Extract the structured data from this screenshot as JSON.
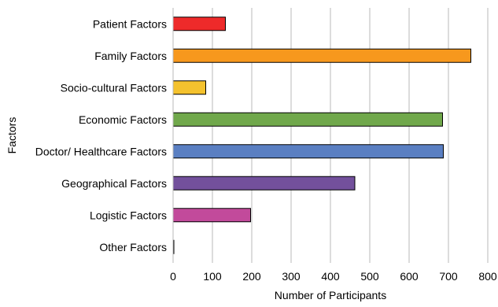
{
  "chart_data": {
    "type": "bar",
    "orientation": "horizontal",
    "title": "",
    "xlabel": "Number of Participants",
    "ylabel": "Factors",
    "xlim": [
      0,
      800
    ],
    "x_ticks": [
      "0",
      "100",
      "200",
      "300",
      "400",
      "500",
      "600",
      "700",
      "800"
    ],
    "grid": "vertical",
    "legend": "none",
    "categories": [
      "Patient Factors",
      "Family Factors",
      "Socio-cultural Factors",
      "Economic Factors",
      "Doctor/ Healthcare Factors",
      "Geographical Factors",
      "Logistic Factors",
      "Other Factors"
    ],
    "values": [
      133,
      757,
      83,
      685,
      687,
      462,
      197,
      2
    ],
    "colors": [
      "#ee2a2a",
      "#f7981d",
      "#f4c22e",
      "#70a84b",
      "#5a7fc2",
      "#73509c",
      "#c24a9b",
      "#888888"
    ]
  }
}
